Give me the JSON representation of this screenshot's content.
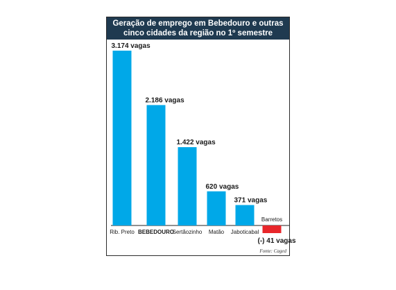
{
  "chart_data": {
    "type": "bar",
    "title": "Geração de emprego em Bebedouro e outras cinco cidades da região no 1º semestre",
    "title_lines": [
      "Geração de emprego em Bebedouro e outras",
      "cinco cidades da região no 1º semestre"
    ],
    "categories": [
      "Rib. Preto",
      "BEBEDOURO",
      "Sertãozinho",
      "Matão",
      "Jaboticabal",
      "Barretos"
    ],
    "values": [
      3174,
      2186,
      1422,
      620,
      371,
      -41
    ],
    "value_labels": [
      "3.174 vagas",
      "2.186 vagas",
      "1.422 vagas",
      "620 vagas",
      "371 vagas",
      "(-) 41 vagas"
    ],
    "highlight_category": "BEBEDOURO",
    "xlabel": "",
    "ylabel": "",
    "ylim": [
      -41,
      3174
    ],
    "grid": false,
    "legend": "none",
    "source": "Fonte: Caged"
  },
  "colors": {
    "positive_bar": "#00a8e8",
    "negative_bar": "#e8262a",
    "title_background": "#1f3a50",
    "title_text": "#ffffff"
  }
}
